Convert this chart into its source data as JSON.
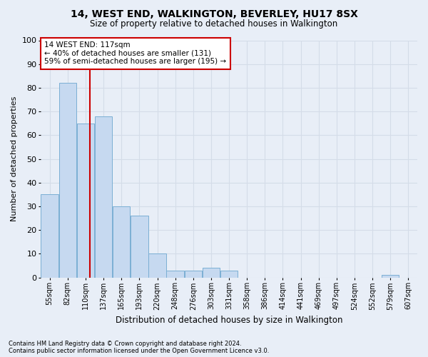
{
  "title": "14, WEST END, WALKINGTON, BEVERLEY, HU17 8SX",
  "subtitle": "Size of property relative to detached houses in Walkington",
  "xlabel": "Distribution of detached houses by size in Walkington",
  "ylabel": "Number of detached properties",
  "bin_labels": [
    "55sqm",
    "82sqm",
    "110sqm",
    "137sqm",
    "165sqm",
    "193sqm",
    "220sqm",
    "248sqm",
    "276sqm",
    "303sqm",
    "331sqm",
    "358sqm",
    "386sqm",
    "414sqm",
    "441sqm",
    "469sqm",
    "497sqm",
    "524sqm",
    "552sqm",
    "579sqm",
    "607sqm"
  ],
  "bar_values": [
    35,
    82,
    65,
    68,
    30,
    26,
    10,
    3,
    3,
    4,
    3,
    0,
    0,
    0,
    0,
    0,
    0,
    0,
    0,
    1,
    0
  ],
  "bar_color": "#c6d9f0",
  "bar_edge_color": "#7bafd4",
  "grid_color": "#d4dce8",
  "background_color": "#e8eef7",
  "vline_x_index": 2.36,
  "annotation_text": "14 WEST END: 117sqm\n← 40% of detached houses are smaller (131)\n59% of semi-detached houses are larger (195) →",
  "annotation_box_color": "#ffffff",
  "annotation_box_edgecolor": "#cc0000",
  "footnote1": "Contains HM Land Registry data © Crown copyright and database right 2024.",
  "footnote2": "Contains public sector information licensed under the Open Government Licence v3.0.",
  "ylim": [
    0,
    100
  ],
  "yticks": [
    0,
    10,
    20,
    30,
    40,
    50,
    60,
    70,
    80,
    90,
    100
  ],
  "title_fontsize": 10,
  "subtitle_fontsize": 8.5,
  "ylabel_fontsize": 8,
  "xlabel_fontsize": 8.5
}
